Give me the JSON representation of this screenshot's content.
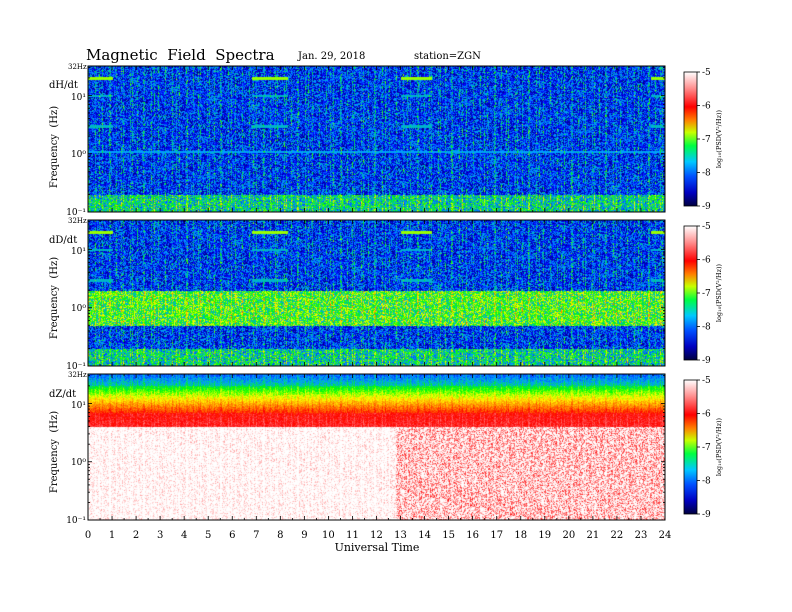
{
  "header": {
    "title": "Magnetic  Field  Spectra",
    "date": "Jan. 29, 2018",
    "station": "station=ZGN"
  },
  "xaxis": {
    "label": "Universal Time",
    "ticks": [
      "0",
      "1",
      "2",
      "3",
      "4",
      "5",
      "6",
      "7",
      "8",
      "9",
      "10",
      "11",
      "12",
      "13",
      "14",
      "15",
      "16",
      "17",
      "18",
      "19",
      "20",
      "21",
      "22",
      "23",
      "24"
    ],
    "range": [
      0,
      24
    ]
  },
  "colorbar": {
    "label": "log₁₀(PSD(V²/Hz))",
    "ticks": [
      "-5",
      "-6",
      "-7",
      "-8",
      "-9"
    ],
    "range": [
      -9,
      -5
    ],
    "colors": [
      "#000060",
      "#0000ff",
      "#00a0ff",
      "#00ff00",
      "#ffff00",
      "#ff8000",
      "#ff0000",
      "#ff8080",
      "#ffffff"
    ]
  },
  "panels": [
    {
      "component": "dH/dt",
      "ylabel": "Frequency  (Hz)",
      "top_label": "32Hz",
      "yticks": [
        "10¹",
        "10⁰",
        "10⁻¹"
      ]
    },
    {
      "component": "dD/dt",
      "ylabel": "Frequency  (Hz)",
      "top_label": "32Hz",
      "yticks": [
        "10¹",
        "10⁰",
        "10⁻¹"
      ]
    },
    {
      "component": "dZ/dt",
      "ylabel": "Frequency  (Hz)",
      "top_label": "32Hz",
      "yticks": [
        "10¹",
        "10⁰",
        "10⁻¹"
      ]
    }
  ],
  "chart_data": [
    {
      "type": "heatmap",
      "title": "dH/dt",
      "xlabel": "Universal Time",
      "ylabel": "Frequency  (Hz)",
      "xlim": [
        0,
        24
      ],
      "ylim": [
        0.1,
        32
      ],
      "yscale": "log",
      "zlabel": "log₁₀(PSD(V²/Hz))",
      "zlim": [
        -9,
        -5
      ],
      "line_intervals_hours": [
        [
          0,
          1
        ],
        [
          6.8,
          8.3
        ],
        [
          13,
          14.3
        ],
        [
          23.4,
          24
        ]
      ],
      "line_frequencies_hz": [
        20,
        10,
        3
      ],
      "persistent_line_hz": 1.1
    },
    {
      "type": "heatmap",
      "title": "dD/dt",
      "xlabel": "Universal Time",
      "ylabel": "Frequency  (Hz)",
      "xlim": [
        0,
        24
      ],
      "ylim": [
        0.1,
        32
      ],
      "yscale": "log",
      "zlabel": "log₁₀(PSD(V²/Hz))",
      "zlim": [
        -9,
        -5
      ],
      "line_intervals_hours": [
        [
          0,
          1
        ],
        [
          6.8,
          8.3
        ],
        [
          13,
          14.3
        ],
        [
          23.4,
          24
        ]
      ],
      "line_frequencies_hz": [
        20,
        10,
        3
      ]
    },
    {
      "type": "heatmap",
      "title": "dZ/dt",
      "xlabel": "Universal Time",
      "ylabel": "Frequency  (Hz)",
      "xlim": [
        0,
        24
      ],
      "ylim": [
        0.1,
        32
      ],
      "yscale": "log",
      "zlabel": "log₁₀(PSD(V²/Hz))",
      "zlim": [
        -9,
        -5
      ],
      "high_level_onset_hours": 12.8
    }
  ]
}
